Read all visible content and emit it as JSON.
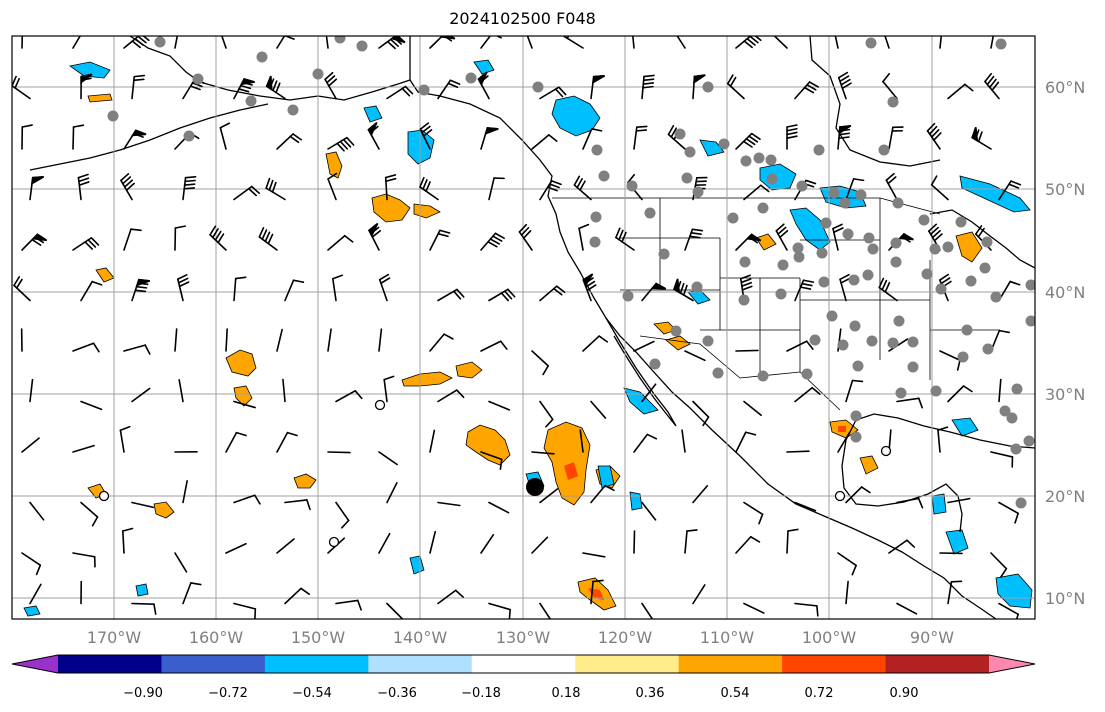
{
  "title": "2024102500 F048",
  "map": {
    "lon_labels": [
      "170°W",
      "160°W",
      "150°W",
      "140°W",
      "130°W",
      "120°W",
      "110°W",
      "100°W",
      "90°W"
    ],
    "lat_labels": [
      "60°N",
      "50°N",
      "40°N",
      "30°N",
      "20°N",
      "10°N"
    ],
    "extent": {
      "lon": [
        -180,
        -80
      ],
      "lat": [
        8,
        65
      ]
    },
    "gridlines": true,
    "colors": {
      "land_outline": "#000000",
      "grid": "#a0a0a0",
      "station_dot": "#808080"
    }
  },
  "colorbar": {
    "tick_labels": [
      "−0.90",
      "−0.72",
      "−0.54",
      "−0.36",
      "−0.18",
      "0.18",
      "0.36",
      "0.54",
      "0.72",
      "0.90"
    ],
    "colors": [
      "#9932cc",
      "#00008b",
      "#3a5fcd",
      "#00bfff",
      "#b0e0ff",
      "#ffffff",
      "#ffec8b",
      "#ffa500",
      "#ff4500",
      "#b22222",
      "#ff88b0"
    ]
  }
}
